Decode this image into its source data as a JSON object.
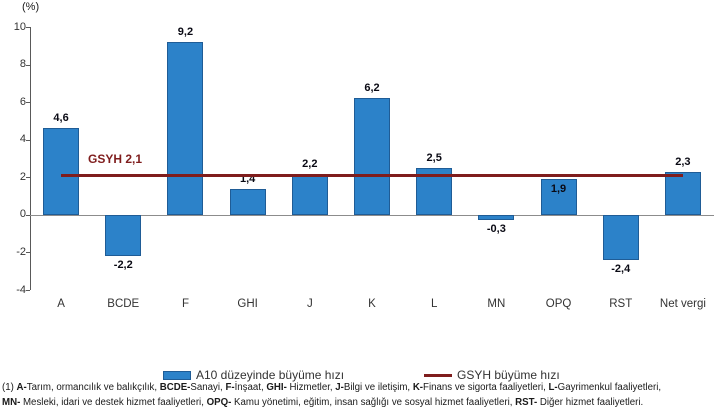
{
  "percent_label": "(%)",
  "colors": {
    "bar_fill": "#2C82C9",
    "bar_border": "#1F5C96",
    "gsyh_line": "#7F1D1D"
  },
  "chart_data": {
    "type": "bar",
    "title": "",
    "ylabel": "(%)",
    "xlabel": "",
    "ylim": [
      -4,
      10
    ],
    "yticks": [
      10,
      8,
      6,
      4,
      2,
      0,
      -2,
      -4
    ],
    "grid": false,
    "legend_position": "bottom",
    "categories": [
      "A",
      "BCDE",
      "F",
      "GHI",
      "J",
      "K",
      "L",
      "MN",
      "OPQ",
      "RST",
      "Net vergi"
    ],
    "series": [
      {
        "name": "A10 düzeyinde büyüme hızı",
        "type": "bar",
        "values": [
          4.6,
          -2.2,
          9.2,
          1.4,
          2.2,
          6.2,
          2.5,
          -0.3,
          1.9,
          -2.4,
          2.3
        ],
        "value_labels": [
          "4,6",
          "-2,2",
          "9,2",
          "1,4",
          "2,2",
          "6,2",
          "2,5",
          "-0,3",
          "1,9",
          "-2,4",
          "2,3"
        ],
        "label_positions": [
          "above",
          "below",
          "above",
          "above",
          "above",
          "above",
          "above",
          "below",
          "inside",
          "below",
          "above"
        ]
      },
      {
        "name": "GSYH büyüme hızı",
        "type": "line",
        "value": 2.1,
        "annotation": "GSYH 2,1"
      }
    ]
  },
  "legend": {
    "items": [
      {
        "swatch": "bar",
        "label": "A10 düzeyinde büyüme hızı"
      },
      {
        "swatch": "line",
        "label": "GSYH büyüme hızı"
      }
    ]
  },
  "footnote": {
    "line1": [
      {
        "text": "(1) ",
        "bold": false
      },
      {
        "text": "A-",
        "bold": true
      },
      {
        "text": "Tarım, ormancılık ve balıkçılık, ",
        "bold": false
      },
      {
        "text": "BCDE-",
        "bold": true
      },
      {
        "text": "Sanayi, ",
        "bold": false
      },
      {
        "text": "F-",
        "bold": true
      },
      {
        "text": "İnşaat, ",
        "bold": false
      },
      {
        "text": "GHI-",
        "bold": true
      },
      {
        "text": " Hizmetler, ",
        "bold": false
      },
      {
        "text": "J-",
        "bold": true
      },
      {
        "text": "Bilgi ve iletişim, ",
        "bold": false
      },
      {
        "text": "K-",
        "bold": true
      },
      {
        "text": "Finans ve sigorta faaliyetleri, ",
        "bold": false
      },
      {
        "text": "L-",
        "bold": true
      },
      {
        "text": "Gayrimenkul faaliyetleri,",
        "bold": false
      }
    ],
    "line2": [
      {
        "text": "MN-",
        "bold": true
      },
      {
        "text": " Mesleki, idari ve destek hizmet faaliyetleri, ",
        "bold": false
      },
      {
        "text": "OPQ-",
        "bold": true
      },
      {
        "text": " Kamu yönetimi, eğitim, insan sağlığı ve sosyal hizmet faaliyetleri, ",
        "bold": false
      },
      {
        "text": "RST-",
        "bold": true
      },
      {
        "text": " Diğer hizmet faaliyetleri.",
        "bold": false
      }
    ]
  }
}
